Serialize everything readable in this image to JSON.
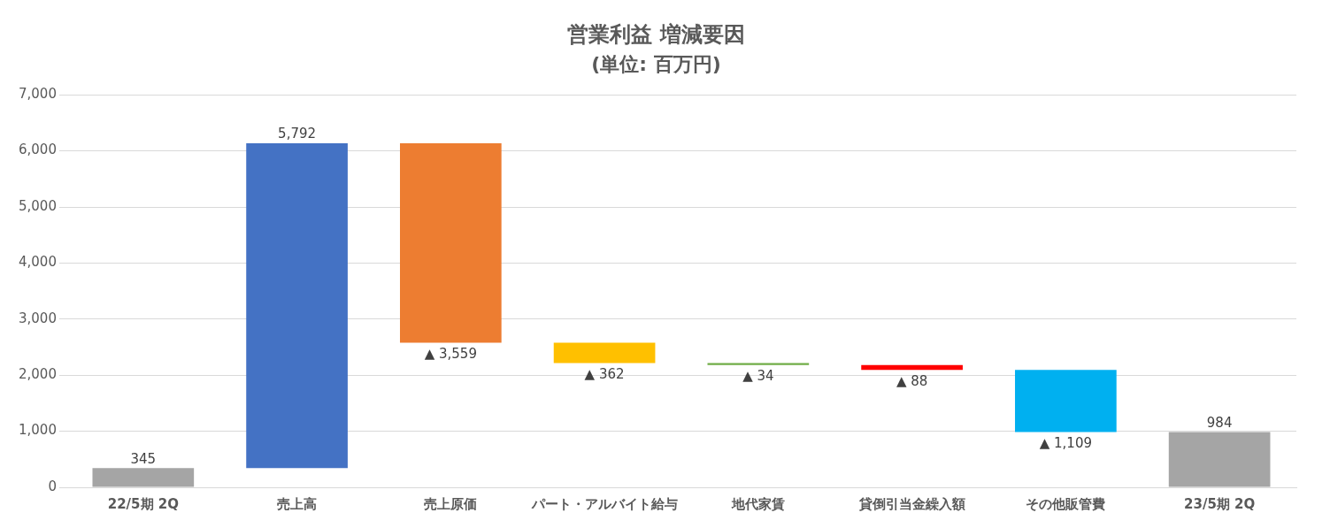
{
  "chart_data": {
    "type": "bar",
    "title": "営業利益 増減要因",
    "subtitle": "(単位: 百万円)",
    "categories": [
      "22/5期 2Q",
      "売上高",
      "売上原価",
      "パート・アルバイト給与",
      "地代家賃",
      "貸倒引当金繰入額",
      "その他販管費",
      "23/5期 2Q"
    ],
    "values": [
      345,
      5792,
      -3559,
      -362,
      -34,
      -88,
      -1109,
      984
    ],
    "base": [
      0,
      345,
      6137,
      2578,
      2216,
      2182,
      2094,
      0
    ],
    "colors": [
      "#a5a5a5",
      "#4472c4",
      "#ed7d31",
      "#ffc000",
      "#70ad47",
      "#ff0000",
      "#00b0f0",
      "#a5a5a5"
    ],
    "value_labels": [
      "345",
      "5,792",
      "▲ 3,559",
      "▲ 362",
      "▲ 34",
      "▲ 88",
      "▲ 1,109",
      "984"
    ],
    "ylim": [
      0,
      7000
    ],
    "yticks": [
      0,
      {
        "value": 1000,
        "label": "1,000"
      },
      {
        "value": 2000,
        "label": "2,000"
      },
      {
        "value": 3000,
        "label": "3,000"
      },
      {
        "value": 4000,
        "label": "4,000"
      },
      {
        "value": 5000,
        "label": "5,000"
      },
      {
        "value": 6000,
        "label": "6,000"
      },
      {
        "value": 7000,
        "label": "7,000"
      }
    ],
    "grid": "y",
    "legend": false
  }
}
